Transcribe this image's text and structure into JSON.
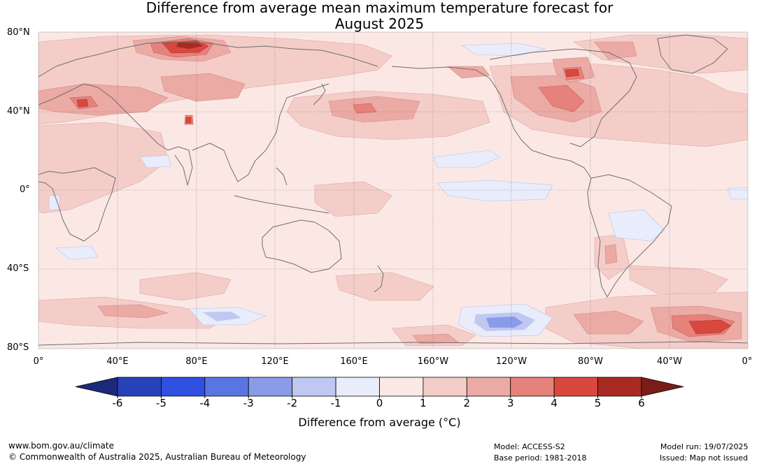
{
  "title": {
    "line1": "Difference from average mean maximum temperature forecast for",
    "line2": "August 2025"
  },
  "map": {
    "lat_labels": [
      "80°N",
      "40°N",
      "0°",
      "40°S",
      "80°S"
    ],
    "lon_labels": [
      "0°",
      "40°E",
      "80°E",
      "120°E",
      "160°E",
      "160°W",
      "120°W",
      "80°W",
      "40°W",
      "0°"
    ],
    "ocean_base_color": "#fbe8e5",
    "coast_color": "#6e6e6e",
    "grid_color": "#666666"
  },
  "colorbar": {
    "title": "Difference from average (°C)",
    "ticks": [
      "-6",
      "-5",
      "-4",
      "-3",
      "-2",
      "-1",
      "0",
      "1",
      "2",
      "3",
      "4",
      "5",
      "6"
    ],
    "colors": [
      "#1c2a7c",
      "#2742b8",
      "#2f50e0",
      "#5b74e4",
      "#8a9be8",
      "#c0c8f2",
      "#e8ecfb",
      "#fbe8e5",
      "#f4cdc9",
      "#ecaaa5",
      "#e5827b",
      "#d9483f",
      "#a92a22",
      "#7a1d18"
    ]
  },
  "footer": {
    "website": "www.bom.gov.au/climate",
    "copyright": "© Commonwealth of Australia 2025, Australian Bureau of Meteorology",
    "model": "Model: ACCESS-S2",
    "base_period": "Base period: 1981-2018",
    "model_run": "Model run: 19/07/2025",
    "issued": "Issued: Map not issued"
  }
}
